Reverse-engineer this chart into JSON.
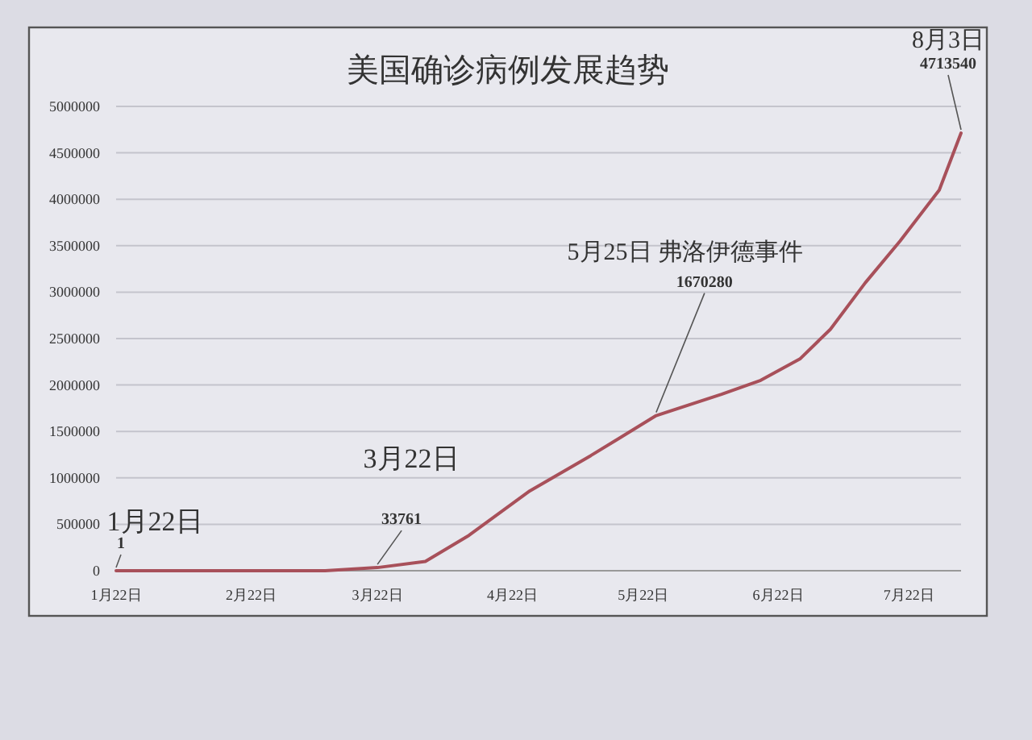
{
  "chart_data": {
    "type": "line",
    "title": "美国确诊病例发展趋势",
    "x": [
      "--01-22",
      "--02-22",
      "--03-10",
      "--03-22",
      "--04-02",
      "--04-12",
      "--04-26",
      "--05-10",
      "--05-25",
      "--06-09",
      "--06-18",
      "--06-27",
      "--07-04",
      "--07-12",
      "--07-20",
      "--07-29",
      "--08-03"
    ],
    "series": [
      {
        "color": "#a8505a",
        "values": [
          1,
          20,
          1000,
          33761,
          100000,
          380000,
          860000,
          1240000,
          1670280,
          1900000,
          2050000,
          2280000,
          2600000,
          3100000,
          3550000,
          4100000,
          4713540
        ]
      }
    ],
    "xlim": [
      "--01-22",
      "--08-03"
    ],
    "xticks": [
      {
        "value": "--01-22",
        "label": "1月22日"
      },
      {
        "value": "--02-22",
        "label": "2月22日"
      },
      {
        "value": "--03-22",
        "label": "3月22日"
      },
      {
        "value": "--04-22",
        "label": "4月22日"
      },
      {
        "value": "--05-22",
        "label": "5月22日"
      },
      {
        "value": "--06-22",
        "label": "6月22日"
      },
      {
        "value": "--07-22",
        "label": "7月22日"
      }
    ],
    "ylim": [
      0,
      5000000
    ],
    "yticks": [
      0,
      500000,
      1000000,
      1500000,
      2000000,
      2500000,
      3000000,
      3500000,
      4000000,
      4500000,
      5000000
    ],
    "grid": "y",
    "marker": "none",
    "line_style": "solid",
    "annotations": [
      {
        "text": "1月22日",
        "x": "--01-22",
        "y": 1
      },
      {
        "text": "1",
        "x": "--01-22",
        "y": 1
      },
      "3月22日",
      {
        "text": "33761",
        "x": "--03-22",
        "y": 33761
      },
      {
        "text": "5月25日 弗洛伊德事件",
        "x": "--05-25",
        "y": 1670280
      },
      {
        "text": "1670280",
        "x": "--05-25",
        "y": 1670280
      },
      {
        "text": "8月3日",
        "x": "--08-03",
        "y": 4713540
      },
      {
        "text": "4713540",
        "x": "--08-03",
        "y": 4713540
      }
    ]
  }
}
